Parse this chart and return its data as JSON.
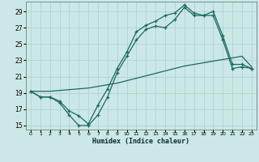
{
  "xlabel": "Humidex (Indice chaleur)",
  "background_color": "#cce8e6",
  "grid_color": "#aacfcc",
  "line_color": "#1a6b5a",
  "xlim": [
    -0.5,
    23.5
  ],
  "ylim": [
    14.5,
    30.2
  ],
  "xticks": [
    0,
    1,
    2,
    3,
    4,
    5,
    6,
    7,
    8,
    9,
    10,
    11,
    12,
    13,
    14,
    15,
    16,
    17,
    18,
    19,
    20,
    21,
    22,
    23
  ],
  "yticks": [
    15,
    17,
    19,
    21,
    23,
    25,
    27,
    29
  ],
  "line1_x": [
    0,
    1,
    2,
    3,
    4,
    5,
    6,
    7,
    8,
    9,
    10,
    11,
    12,
    13,
    14,
    15,
    16,
    17,
    18,
    19,
    20,
    21,
    22,
    23
  ],
  "line1_y": [
    19.2,
    18.5,
    18.5,
    17.8,
    16.3,
    15.0,
    15.0,
    16.3,
    18.5,
    21.5,
    23.5,
    25.5,
    26.8,
    27.2,
    27.0,
    28.0,
    29.5,
    28.5,
    28.5,
    28.5,
    25.5,
    22.0,
    22.2,
    22.0
  ],
  "line2_x": [
    0,
    1,
    2,
    3,
    4,
    5,
    6,
    7,
    8,
    9,
    10,
    11,
    12,
    13,
    14,
    15,
    16,
    17,
    18,
    19,
    20,
    21,
    22,
    23
  ],
  "line2_y": [
    19.2,
    18.5,
    18.5,
    18.0,
    16.8,
    16.2,
    15.2,
    17.5,
    19.5,
    22.0,
    24.0,
    26.5,
    27.3,
    27.8,
    28.5,
    28.8,
    29.8,
    28.8,
    28.5,
    29.0,
    26.0,
    22.5,
    22.5,
    22.0
  ],
  "line3_x": [
    0,
    1,
    2,
    3,
    4,
    5,
    6,
    7,
    8,
    9,
    10,
    11,
    12,
    13,
    14,
    15,
    16,
    17,
    18,
    19,
    20,
    21,
    22,
    23
  ],
  "line3_y": [
    19.2,
    19.2,
    19.2,
    19.3,
    19.4,
    19.5,
    19.6,
    19.8,
    20.0,
    20.2,
    20.5,
    20.8,
    21.1,
    21.4,
    21.7,
    22.0,
    22.3,
    22.5,
    22.7,
    22.9,
    23.1,
    23.3,
    23.5,
    22.2
  ]
}
